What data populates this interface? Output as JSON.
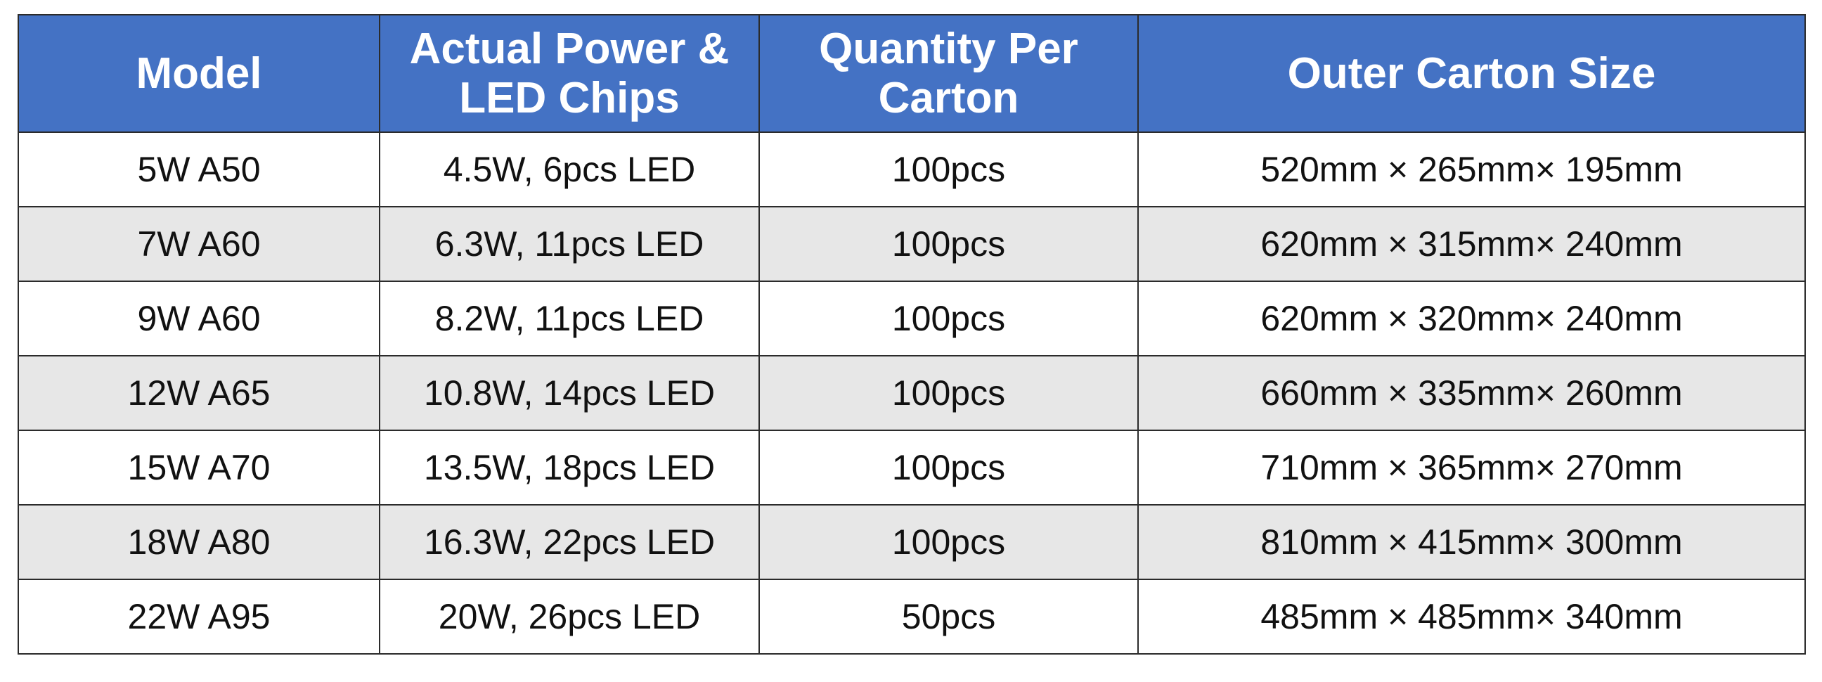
{
  "table": {
    "header": [
      "Model",
      "Actual Power & LED Chips",
      "Quantity Per Carton",
      "Outer Carton Size"
    ],
    "rows": [
      [
        "5W A50",
        "4.5W, 6pcs LED",
        "100pcs",
        "520mm × 265mm× 195mm"
      ],
      [
        "7W A60",
        "6.3W, 11pcs LED",
        "100pcs",
        "620mm × 315mm× 240mm"
      ],
      [
        "9W A60",
        "8.2W, 11pcs LED",
        "100pcs",
        "620mm × 320mm× 240mm"
      ],
      [
        "12W A65",
        "10.8W, 14pcs LED",
        "100pcs",
        "660mm × 335mm× 260mm"
      ],
      [
        "15W A70",
        "13.5W, 18pcs LED",
        "100pcs",
        "710mm × 365mm× 270mm"
      ],
      [
        "18W A80",
        "16.3W, 22pcs LED",
        "100pcs",
        "810mm × 415mm× 300mm"
      ],
      [
        "22W A95",
        "20W, 26pcs LED",
        "50pcs",
        "485mm × 485mm× 340mm"
      ]
    ]
  }
}
